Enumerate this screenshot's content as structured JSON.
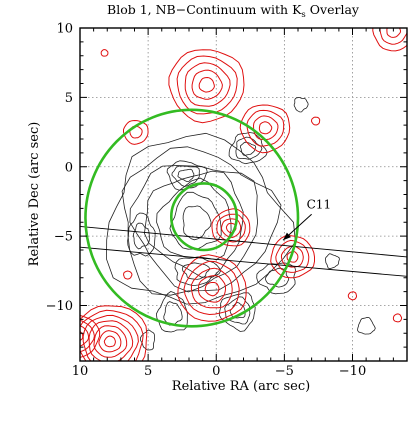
{
  "chart_data": {
    "type": "contour",
    "title_main": "Blob 1, NB−Continuum with K",
    "title_sub": "s",
    "title_tail": " Overlay",
    "xlabel": "Relative RA (arc sec)",
    "ylabel": "Relative Dec (arc sec)",
    "xlim": [
      10,
      -14
    ],
    "ylim": [
      -14,
      10
    ],
    "x_ticks": [
      10,
      5,
      0,
      -5,
      -10
    ],
    "x_tick_labels": [
      "10",
      "5",
      "0",
      "−5",
      "−10"
    ],
    "y_ticks": [
      10,
      5,
      0,
      -5,
      -10
    ],
    "y_tick_labels": [
      "10",
      "5",
      "0",
      "−5",
      "−10"
    ],
    "grid": "dotted",
    "annotation": {
      "text": "C11",
      "x": -7.0,
      "y": -4.0,
      "arrow_to": [
        -4.9,
        -5.3
      ]
    },
    "circles": [
      {
        "name": "outer",
        "cx": 1.8,
        "cy": -3.7,
        "r": 7.8,
        "color": "#33bb22"
      },
      {
        "name": "inner",
        "cx": 0.9,
        "cy": -3.6,
        "r": 2.4,
        "color": "#33bb22"
      }
    ],
    "lines": [
      {
        "name": "slit-upper",
        "x1": 10,
        "y1": -4.3,
        "x2": -14,
        "y2": -6.5
      },
      {
        "name": "slit-lower",
        "x1": 10,
        "y1": -5.8,
        "x2": -14,
        "y2": -7.9
      }
    ],
    "ks_sources": [
      {
        "x": 0.7,
        "y": 5.9,
        "n": 5,
        "r": 0.55
      },
      {
        "x": -3.6,
        "y": 2.8,
        "n": 4,
        "r": 0.45
      },
      {
        "x": 5.9,
        "y": 2.5,
        "n": 2,
        "r": 0.45
      },
      {
        "x": -1.1,
        "y": -4.4,
        "n": 4,
        "r": 0.35
      },
      {
        "x": 0.3,
        "y": -8.8,
        "n": 5,
        "r": 0.5
      },
      {
        "x": -5.6,
        "y": -6.5,
        "n": 4,
        "r": 0.4
      },
      {
        "x": 7.8,
        "y": -12.6,
        "n": 7,
        "r": 0.4
      },
      {
        "x": 10.2,
        "y": -12.2,
        "n": 4,
        "r": 0.4
      },
      {
        "x": -13.0,
        "y": 9.8,
        "n": 3,
        "r": 0.5
      },
      {
        "x": 6.5,
        "y": -7.8,
        "n": 1,
        "r": 0.3
      },
      {
        "x": -7.3,
        "y": 3.3,
        "n": 1,
        "r": 0.3
      },
      {
        "x": -10.0,
        "y": -9.3,
        "n": 1,
        "r": 0.3
      },
      {
        "x": -13.3,
        "y": -10.9,
        "n": 1,
        "r": 0.3
      },
      {
        "x": 8.2,
        "y": 8.2,
        "n": 1,
        "r": 0.25
      }
    ],
    "nb_emission": {
      "center": [
        1.5,
        -4.0
      ],
      "levels": [
        {
          "rx": 6.6,
          "ry": 6.0
        },
        {
          "rx": 5.6,
          "ry": 5.2
        },
        {
          "rx": 4.6,
          "ry": 4.4
        },
        {
          "rx": 3.6,
          "ry": 3.6
        },
        {
          "rx": 2.7,
          "ry": 2.8
        },
        {
          "rx": 1.8,
          "ry": 2.0
        },
        {
          "rx": 1.0,
          "ry": 1.2
        }
      ],
      "clumps": [
        {
          "x": -2.3,
          "y": 1.3,
          "rx": 1.3,
          "ry": 1.1,
          "n": 3
        },
        {
          "x": 2.2,
          "y": -0.6,
          "rx": 1.4,
          "ry": 1.0,
          "n": 3
        },
        {
          "x": -1.6,
          "y": -10.4,
          "rx": 1.3,
          "ry": 1.3,
          "n": 3
        },
        {
          "x": 3.2,
          "y": -10.6,
          "rx": 1.1,
          "ry": 1.4,
          "n": 2
        },
        {
          "x": 1.5,
          "y": -7.5,
          "rx": 1.6,
          "ry": 1.0,
          "n": 2
        },
        {
          "x": -4.5,
          "y": -8.0,
          "rx": 1.4,
          "ry": 1.1,
          "n": 2
        },
        {
          "x": 5.5,
          "y": -5.0,
          "rx": 1.0,
          "ry": 1.5,
          "n": 2
        },
        {
          "x": -6.2,
          "y": 4.5,
          "rx": 0.5,
          "ry": 0.5,
          "n": 1
        },
        {
          "x": 5.0,
          "y": -12.5,
          "rx": 0.5,
          "ry": 0.7,
          "n": 1
        },
        {
          "x": -11.0,
          "y": -11.5,
          "rx": 0.6,
          "ry": 0.6,
          "n": 1
        },
        {
          "x": -8.5,
          "y": -6.8,
          "rx": 0.5,
          "ry": 0.5,
          "n": 1
        }
      ]
    }
  }
}
